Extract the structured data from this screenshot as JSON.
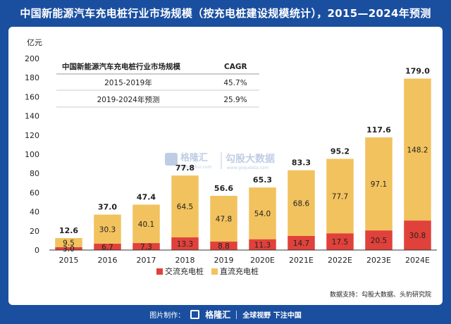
{
  "title": "中国新能源汽车充电桩行业市场规模（按充电桩建设规模统计），2015—2024年预测",
  "footer": {
    "made_by": "图片制作：",
    "brand": "格隆汇",
    "slogan": "全球视野 下注中国"
  },
  "source": "数据支持：勾股大数据、头豹研究院",
  "watermark": {
    "brand": "格隆汇",
    "brand_sub": "gelonghui.com",
    "partner": "勾股大数据",
    "partner_sub": "www.gogudata.com"
  },
  "colors": {
    "ac": "#e0413a",
    "dc": "#f2c25e",
    "header_bg": "#1a4fa0"
  },
  "cagr_table": {
    "header": [
      "中国新能源汽车充电桩行业市场规模",
      "CAGR"
    ],
    "rows": [
      [
        "2015-2019年",
        "45.7%"
      ],
      [
        "2019-2024年预测",
        "25.9%"
      ]
    ]
  },
  "chart_data": {
    "type": "bar",
    "stacked": true,
    "title": "",
    "ylabel": "亿元",
    "xlabel": "",
    "ylim": [
      0,
      200
    ],
    "yticks": [
      0,
      20,
      40,
      60,
      80,
      100,
      120,
      140,
      160,
      180,
      200
    ],
    "categories": [
      "2015",
      "2016",
      "2017",
      "2018",
      "2019",
      "2020E",
      "2021E",
      "2022E",
      "2023E",
      "2024E"
    ],
    "series": [
      {
        "name": "交流充电桩",
        "color": "#e0413a",
        "values": [
          3.0,
          6.7,
          7.3,
          13.3,
          8.8,
          11.3,
          14.7,
          17.5,
          20.5,
          30.8
        ]
      },
      {
        "name": "直流充电桩",
        "color": "#f2c25e",
        "values": [
          9.5,
          30.3,
          40.1,
          64.5,
          47.8,
          54.0,
          68.6,
          77.7,
          97.1,
          148.2
        ]
      }
    ],
    "totals": [
      12.6,
      37.0,
      47.4,
      77.8,
      56.6,
      65.3,
      83.3,
      95.2,
      117.6,
      179.0
    ],
    "legend_position": "bottom-left",
    "grid": false
  }
}
